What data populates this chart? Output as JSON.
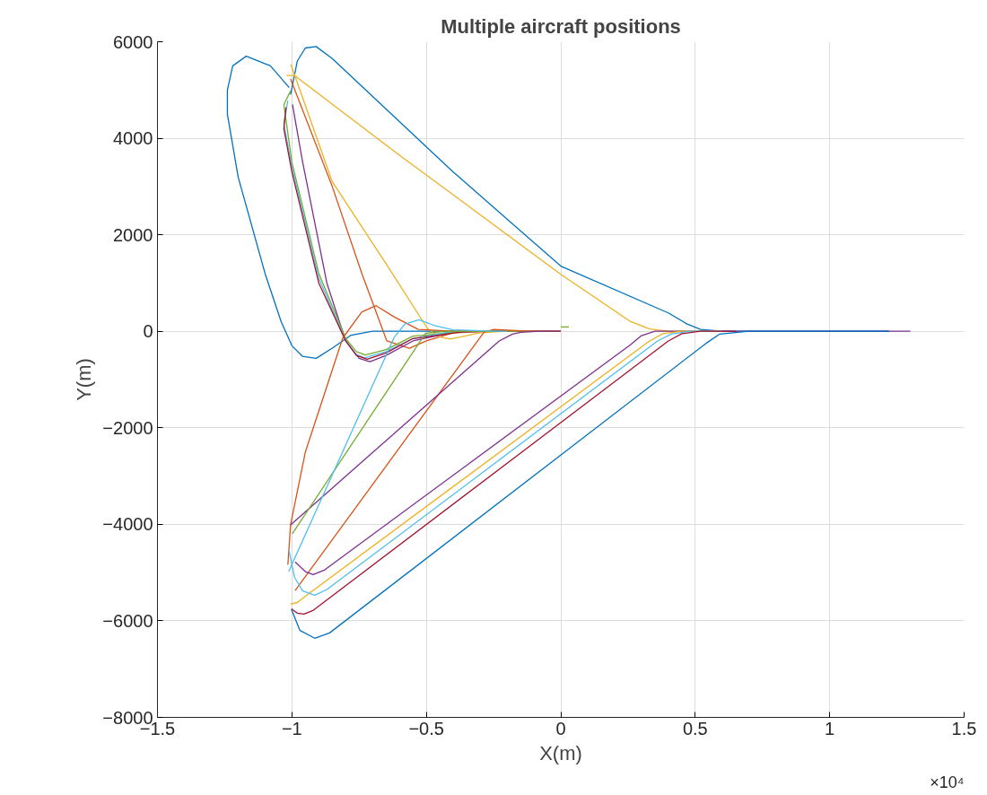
{
  "chart_data": {
    "type": "line",
    "title": "Multiple aircraft positions",
    "xlabel": "X(m)",
    "ylabel": "Y(m)",
    "xlim": [
      -1.5,
      1.5
    ],
    "ylim": [
      -8000,
      6000
    ],
    "xticks": [
      -1.5,
      -1,
      -0.5,
      0,
      0.5,
      1,
      1.5
    ],
    "yticks": [
      -8000,
      -6000,
      -4000,
      -2000,
      0,
      2000,
      4000,
      6000
    ],
    "grid": true,
    "line_style": "solid",
    "annotations": [
      "×10⁴"
    ],
    "series": [
      {
        "color": "#0072bd",
        "x": [
          -1.01,
          -1.08,
          -1.17,
          -1.22,
          -1.24,
          -1.24,
          -1.2,
          -1.1,
          -1.04,
          -1.0,
          -0.96,
          -0.91,
          -0.85,
          -0.78,
          -0.7,
          -0.5,
          -0.2
        ],
        "values": [
          5050,
          5500,
          5700,
          5500,
          5000,
          4500,
          3200,
          1200,
          200,
          -300,
          -520,
          -560,
          -350,
          -80,
          0,
          0,
          0
        ]
      },
      {
        "color": "#0072bd",
        "x": [
          -1.005,
          -0.98,
          -0.95,
          -0.91,
          -0.85,
          -0.4,
          0,
          0.4,
          0.47,
          0.52,
          0.6,
          0.7,
          1.22
        ],
        "values": [
          4900,
          5600,
          5870,
          5900,
          5650,
          3300,
          1350,
          380,
          150,
          40,
          0,
          0,
          0
        ]
      },
      {
        "color": "#d95319",
        "x": [
          -1.005,
          -0.85,
          -0.74,
          -0.647,
          -0.563,
          -0.5,
          -0.4,
          -0.25,
          0
        ],
        "values": [
          5230,
          3000,
          1200,
          -200,
          -350,
          -200,
          -30,
          0,
          0
        ]
      },
      {
        "color": "#edb120",
        "x": [
          -1.004,
          -0.85,
          -0.65,
          -0.496,
          -0.45,
          -0.41,
          -0.3,
          -0.2,
          0
        ],
        "values": [
          5530,
          3100,
          1400,
          60,
          -120,
          -160,
          -30,
          0,
          0
        ]
      },
      {
        "color": "#edb120",
        "x": [
          -1.02,
          -0.99,
          -0.6,
          0,
          0.26,
          0.33,
          0.4,
          0.5
        ],
        "values": [
          5300,
          5300,
          3650,
          1180,
          200,
          50,
          0,
          0
        ]
      },
      {
        "color": "#7e2f8e",
        "x": [
          -0.998,
          -0.96,
          -0.87,
          -0.8,
          -0.75,
          -0.71,
          -0.65,
          -0.55,
          -0.4,
          -0.25,
          0
        ],
        "values": [
          4700,
          3500,
          1000,
          -200,
          -560,
          -630,
          -500,
          -200,
          -20,
          0,
          0
        ]
      },
      {
        "color": "#77ac30",
        "x": [
          -1.005,
          -1.03,
          -1.0,
          -0.9,
          -0.8,
          -0.76,
          -0.727,
          -0.65,
          -0.55,
          -0.35,
          0
        ],
        "values": [
          4980,
          4700,
          3500,
          1200,
          -150,
          -420,
          -490,
          -380,
          -100,
          0,
          0
        ]
      },
      {
        "color": "#4dbeee",
        "x": [
          -1.015,
          -1.03,
          -1.0,
          -0.9,
          -0.8,
          -0.76,
          -0.73,
          -0.65,
          -0.55,
          -0.4,
          -0.2
        ],
        "values": [
          4780,
          4300,
          3400,
          1100,
          -200,
          -480,
          -550,
          -420,
          -150,
          0,
          0
        ]
      },
      {
        "color": "#a2142f",
        "x": [
          -1.022,
          -1.03,
          -1.0,
          -0.9,
          -0.8,
          -0.76,
          -0.72,
          -0.65,
          -0.55,
          -0.35
        ],
        "values": [
          4640,
          4200,
          3300,
          1000,
          -200,
          -500,
          -580,
          -450,
          -150,
          0
        ]
      },
      {
        "color": "#d95319",
        "x": [
          -1.015,
          -1.005,
          -0.95,
          -0.811,
          -0.74,
          -0.687,
          -0.62,
          -0.53,
          -0.4,
          -0.25
        ],
        "values": [
          -4840,
          -4010,
          -2500,
          -140,
          400,
          530,
          300,
          40,
          0,
          0
        ]
      },
      {
        "color": "#d95319",
        "x": [
          -0.988,
          -0.286,
          -0.25,
          -0.15,
          0
        ],
        "values": [
          -5370,
          -20,
          40,
          10,
          0
        ]
      },
      {
        "color": "#7e2f8e",
        "x": [
          -1.005,
          -0.229,
          -0.18,
          -0.15,
          -0.08,
          0
        ],
        "values": [
          -4010,
          -200,
          -60,
          -20,
          0,
          0
        ]
      },
      {
        "color": "#77ac30",
        "x": [
          -0.998,
          -0.503,
          -0.45,
          -0.4,
          -0.25
        ],
        "values": [
          -4190,
          -40,
          -10,
          0,
          0
        ]
      },
      {
        "color": "#77ac30",
        "x": [
          0,
          0.03
        ],
        "values": [
          90,
          90
        ]
      },
      {
        "color": "#4dbeee",
        "x": [
          -1.012,
          -0.62,
          -0.58,
          -0.527,
          -0.47,
          -0.4,
          -0.25
        ],
        "values": [
          -4980,
          -130,
          150,
          240,
          120,
          30,
          0
        ]
      },
      {
        "color": "#7e2f8e",
        "x": [
          -0.988,
          -0.95,
          -0.921,
          -0.88,
          0.259,
          0.3,
          0.35,
          0.5,
          1.3
        ],
        "values": [
          -4780,
          -4980,
          -5040,
          -4950,
          -280,
          -90,
          0,
          0,
          0
        ]
      },
      {
        "color": "#edb120",
        "x": [
          -1.005,
          -0.98,
          -0.94,
          0.33,
          0.38,
          0.45,
          0.6
        ],
        "values": [
          -5650,
          -5620,
          -5450,
          -200,
          -50,
          0,
          0
        ]
      },
      {
        "color": "#4dbeee",
        "x": [
          -1.011,
          -0.99,
          -0.96,
          -0.915,
          -0.87,
          0.36,
          0.41,
          0.48,
          0.6
        ],
        "values": [
          -4540,
          -5100,
          -5380,
          -5470,
          -5350,
          -200,
          -60,
          0,
          0
        ]
      },
      {
        "color": "#a2142f",
        "x": [
          -1.002,
          -0.98,
          -0.955,
          -0.92,
          0.4,
          0.45,
          0.52,
          0.65
        ],
        "values": [
          -5750,
          -5840,
          -5860,
          -5780,
          -200,
          -50,
          0,
          0
        ]
      },
      {
        "color": "#0072bd",
        "x": [
          -1.002,
          -0.97,
          -0.915,
          -0.86,
          0.54,
          0.59,
          0.7,
          1.22
        ],
        "values": [
          -5760,
          -6200,
          -6360,
          -6250,
          -250,
          -60,
          0,
          0
        ]
      }
    ]
  }
}
